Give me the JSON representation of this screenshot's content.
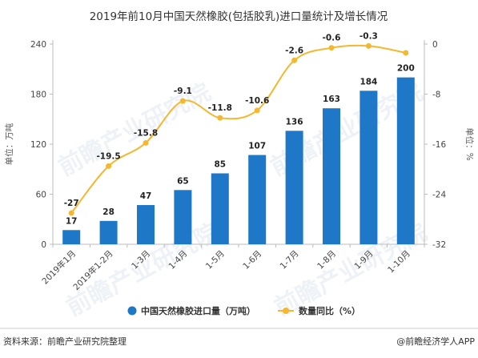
{
  "chart_data": {
    "type": "bar",
    "title": "2019年前10月中国天然橡胶(包括胶乳)进口量统计及增长情况",
    "categories": [
      "2019年1月",
      "2019年1-2月",
      "1-3月",
      "1-4月",
      "1-5月",
      "1-6月",
      "1-7月",
      "1-8月",
      "1-9月",
      "1-10月"
    ],
    "series": [
      {
        "name": "中国天然橡胶进口量（万吨）",
        "type": "bar",
        "axis": "left",
        "values": [
          17,
          28,
          47,
          65,
          85,
          107,
          136,
          163,
          184,
          200
        ],
        "color": "#1f77c8"
      },
      {
        "name": "数量同比（%）",
        "type": "line",
        "axis": "right",
        "values": [
          -27,
          -19.5,
          -15.8,
          -9.1,
          -11.8,
          -10.6,
          -2.6,
          -0.6,
          -0.3,
          -1.4
        ],
        "labels": [
          "-27",
          "-19.5",
          "-15.8",
          "-9.1",
          "-11.8",
          "-10.6",
          "-2.6",
          "-0.6",
          "-0.3",
          ""
        ],
        "color": "#f5b730"
      }
    ],
    "ylabel_left": "单位：万吨",
    "ylabel_right": "单位：%",
    "ylim_left": [
      0,
      240
    ],
    "yticks_left": [
      "0",
      "60",
      "120",
      "180",
      "240"
    ],
    "ylim_right": [
      -32,
      0
    ],
    "yticks_right": [
      "-32",
      "-24",
      "-16",
      "-8",
      "0"
    ],
    "grid": false,
    "legend": "bottom"
  },
  "footer": {
    "source": "资料来源：前瞻产业研究院整理",
    "brand": "@前瞻经济学人APP"
  },
  "watermark": "前瞻产业研究院"
}
